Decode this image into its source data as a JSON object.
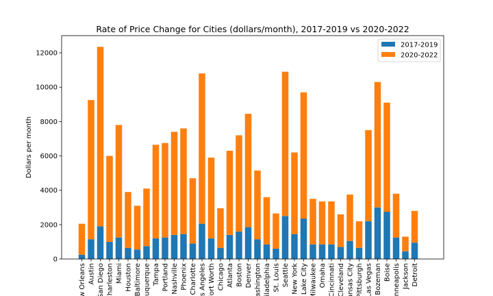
{
  "chart_data": {
    "type": "bar",
    "stacked": true,
    "title": "Rate of Price Change for Cities (dollars/month), 2017-2019 vs 2020-2022",
    "xlabel": "",
    "ylabel": "Dollars per month",
    "ylim": [
      0,
      13000
    ],
    "yticks": [
      0,
      2000,
      4000,
      6000,
      8000,
      10000,
      12000
    ],
    "ytick_labels": [
      "0",
      "2000",
      "4000",
      "6000",
      "8000",
      "10000",
      "12000"
    ],
    "grid": false,
    "legend_position": "top-right",
    "categories": [
      "New Orleans",
      "Austin",
      "San Diego",
      "Charleston",
      "Miami",
      "Houston",
      "Baltimore",
      "Albuquerque",
      "Tampa",
      "Portland",
      "Nashville",
      "Phoenix",
      "Charlotte",
      "Los Angeles",
      "Fort Worth",
      "Chicago",
      "Atlanta",
      "Boston",
      "Denver",
      "Washington",
      "Philadelphia",
      "St. Louis",
      "Seattle",
      "New York",
      "Salt Lake City",
      "Milwaukee",
      "Omaha",
      "Cincinnati",
      "Cleveland",
      "Kansas City",
      "Pittsburgh",
      "Las Vegas",
      "Bozeman",
      "Boise",
      "Minneapolis",
      "Jackson",
      "Detroit"
    ],
    "series": [
      {
        "name": "2017-2019",
        "color": "#1f77b4",
        "values": [
          250,
          1150,
          1900,
          1000,
          1250,
          650,
          550,
          750,
          1200,
          1250,
          1400,
          1450,
          900,
          2050,
          1200,
          650,
          1400,
          1600,
          1850,
          1150,
          850,
          600,
          2500,
          1450,
          2350,
          850,
          850,
          850,
          700,
          1050,
          650,
          2200,
          3000,
          2750,
          1250,
          450,
          950
        ]
      },
      {
        "name": "2020-2022",
        "color": "#ff7f0e",
        "values": [
          1800,
          8100,
          10450,
          5000,
          6550,
          3250,
          2550,
          3350,
          5450,
          5500,
          6000,
          6150,
          3800,
          8750,
          4700,
          2300,
          4900,
          5600,
          6600,
          4000,
          2750,
          2050,
          8400,
          4750,
          7350,
          2650,
          2500,
          2500,
          1900,
          2700,
          1550,
          5300,
          7300,
          6350,
          2550,
          850,
          1850
        ]
      }
    ]
  }
}
